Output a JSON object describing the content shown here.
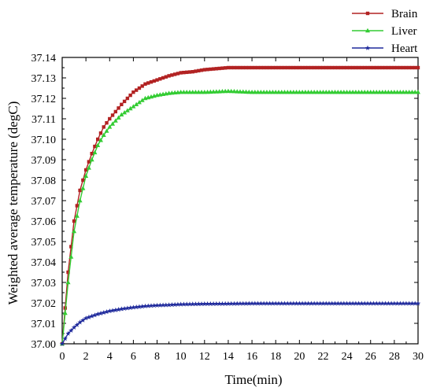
{
  "chart_data": {
    "type": "line",
    "xlabel": "Time(min)",
    "ylabel": "Weighted average temperature (degC)",
    "xlim": [
      0,
      30
    ],
    "ylim": [
      37.0,
      37.14
    ],
    "x_ticks": [
      0,
      2,
      4,
      6,
      8,
      10,
      12,
      14,
      16,
      18,
      20,
      22,
      24,
      26,
      28,
      30
    ],
    "x_tick_labels": [
      "0",
      "2",
      "4",
      "6",
      "8",
      "10",
      "12",
      "14",
      "16",
      "18",
      "20",
      "22",
      "24",
      "26",
      "28",
      "30"
    ],
    "y_ticks": [
      37.0,
      37.01,
      37.02,
      37.03,
      37.04,
      37.05,
      37.06,
      37.07,
      37.08,
      37.09,
      37.1,
      37.11,
      37.12,
      37.13,
      37.14
    ],
    "y_tick_labels": [
      "37.00",
      "37.01",
      "37.02",
      "37.03",
      "37.04",
      "37.05",
      "37.06",
      "37.07",
      "37.08",
      "37.09",
      "37.10",
      "37.11",
      "37.12",
      "37.13",
      "37.14"
    ],
    "grid": false,
    "legend_position": "top-right, outside plot area",
    "series": [
      {
        "name": "Brain",
        "color": "#b22222",
        "marker": "square",
        "x": [
          0,
          0.5,
          1,
          1.5,
          2,
          2.5,
          3,
          3.5,
          4,
          5,
          6,
          7,
          8,
          9,
          10,
          11,
          12,
          13,
          14,
          16,
          18,
          20,
          22,
          24,
          26,
          28,
          30
        ],
        "y": [
          37.0,
          37.035,
          37.06,
          37.075,
          37.085,
          37.093,
          37.1,
          37.106,
          37.11,
          37.117,
          37.123,
          37.127,
          37.129,
          37.131,
          37.1325,
          37.133,
          37.134,
          37.1345,
          37.135,
          37.135,
          37.135,
          37.135,
          37.135,
          37.135,
          37.135,
          37.135,
          37.135
        ]
      },
      {
        "name": "Liver",
        "color": "#33cc33",
        "marker": "triangle",
        "x": [
          0,
          0.5,
          1,
          1.5,
          2,
          2.5,
          3,
          3.5,
          4,
          5,
          6,
          7,
          8,
          9,
          10,
          11,
          12,
          14,
          16,
          18,
          20,
          22,
          24,
          26,
          28,
          30
        ],
        "y": [
          37.0,
          37.03,
          37.055,
          37.07,
          37.082,
          37.09,
          37.097,
          37.102,
          37.106,
          37.112,
          37.116,
          37.12,
          37.1215,
          37.1225,
          37.123,
          37.123,
          37.123,
          37.1235,
          37.123,
          37.123,
          37.123,
          37.123,
          37.123,
          37.123,
          37.123,
          37.123
        ]
      },
      {
        "name": "Heart",
        "color": "#1f2a9c",
        "marker": "star",
        "x": [
          0,
          0.5,
          1,
          1.5,
          2,
          3,
          4,
          5,
          6,
          7,
          8,
          9,
          10,
          12,
          14,
          16,
          18,
          20,
          22,
          24,
          26,
          28,
          30
        ],
        "y": [
          37.0,
          37.005,
          37.008,
          37.0105,
          37.0125,
          37.0145,
          37.016,
          37.017,
          37.0178,
          37.0184,
          37.0188,
          37.019,
          37.0193,
          37.0195,
          37.0196,
          37.0197,
          37.0197,
          37.0197,
          37.0197,
          37.0197,
          37.0197,
          37.0197,
          37.0197
        ]
      }
    ]
  }
}
